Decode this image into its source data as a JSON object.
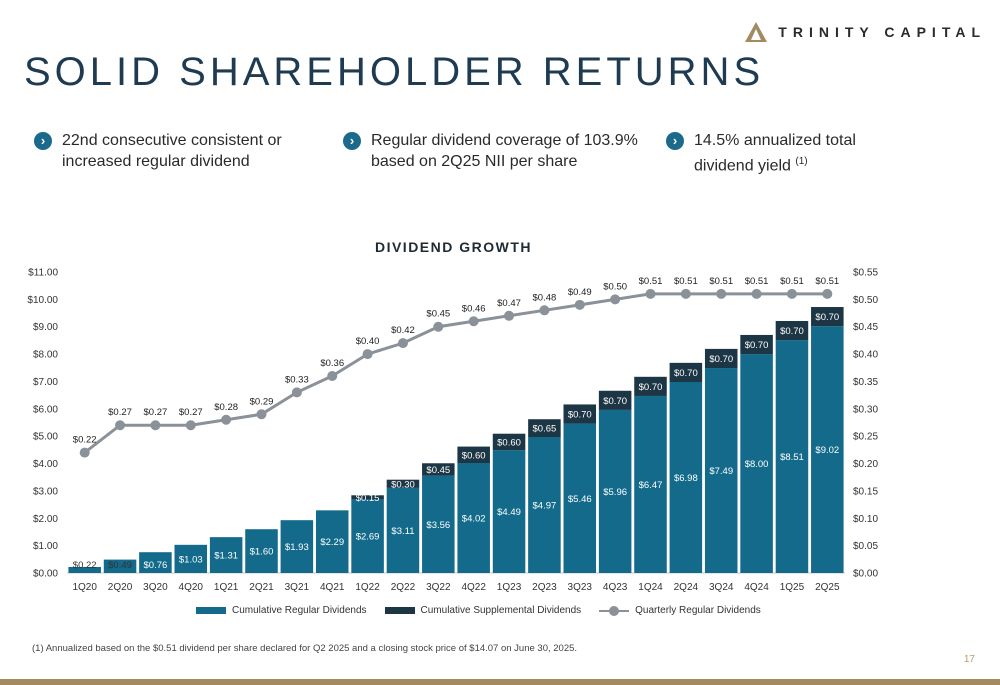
{
  "logo": {
    "text": "TRINITY CAPITAL"
  },
  "page": {
    "title": "SOLID SHAREHOLDER RETURNS",
    "number": "17"
  },
  "highlights": [
    {
      "text": "22nd consecutive consistent or increased regular dividend",
      "note": ""
    },
    {
      "text": "Regular dividend coverage of 103.9% based on 2Q25 NII per share",
      "note": ""
    },
    {
      "text": "14.5% annualized total dividend yield",
      "note": "(1)"
    }
  ],
  "footnote": "(1)   Annualized based on the $0.51 dividend per share declared for Q2 2025 and a closing stock price of $14.07 on June 30, 2025.",
  "colors": {
    "regular": "#136a8a",
    "supplemental": "#1d3645",
    "line": "#8a9198",
    "accent": "#a38a60",
    "title": "#1f3b52"
  },
  "icons": {
    "bullet": "chevron-right-icon",
    "logo": "triangle-logo-icon"
  },
  "chart_data": {
    "type": "bar",
    "title": "DIVIDEND GROWTH",
    "categories": [
      "1Q20",
      "2Q20",
      "3Q20",
      "4Q20",
      "1Q21",
      "2Q21",
      "3Q21",
      "4Q21",
      "1Q22",
      "2Q22",
      "3Q22",
      "4Q22",
      "1Q23",
      "2Q23",
      "3Q23",
      "4Q23",
      "1Q24",
      "2Q24",
      "3Q24",
      "4Q24",
      "1Q25",
      "2Q25"
    ],
    "stacked": true,
    "ylim_left": [
      0,
      11
    ],
    "ylim_right": [
      0,
      0.55
    ],
    "left_ticks": [
      "$0.00",
      "$1.00",
      "$2.00",
      "$3.00",
      "$4.00",
      "$5.00",
      "$6.00",
      "$7.00",
      "$8.00",
      "$9.00",
      "$10.00",
      "$11.00"
    ],
    "right_ticks": [
      "$0.00",
      "$0.05",
      "$0.10",
      "$0.15",
      "$0.20",
      "$0.25",
      "$0.30",
      "$0.35",
      "$0.40",
      "$0.45",
      "$0.50",
      "$0.55"
    ],
    "grid": false,
    "legend_position": "bottom",
    "series": [
      {
        "name": "Cumulative Regular Dividends",
        "type": "bar",
        "axis": "left",
        "values": [
          0.22,
          0.49,
          0.76,
          1.03,
          1.31,
          1.6,
          1.93,
          2.29,
          2.69,
          3.11,
          3.56,
          4.02,
          4.49,
          4.97,
          5.46,
          5.96,
          6.47,
          6.98,
          7.49,
          8.0,
          8.51,
          9.02
        ],
        "labels": [
          "$0.22",
          "$0.49",
          "$0.76",
          "$1.03",
          "$1.31",
          "$1.60",
          "$1.93",
          "$2.29",
          "$2.69",
          "$3.11",
          "$3.56",
          "$4.02",
          "$4.49",
          "$4.97",
          "$5.46",
          "$5.96",
          "$6.47",
          "$6.98",
          "$7.49",
          "$8.00",
          "$8.51",
          "$9.02"
        ]
      },
      {
        "name": "Cumulative Supplemental Dividends",
        "type": "bar",
        "axis": "left",
        "values": [
          0,
          0,
          0,
          0,
          0,
          0,
          0,
          0,
          0.15,
          0.3,
          0.45,
          0.6,
          0.6,
          0.65,
          0.7,
          0.7,
          0.7,
          0.7,
          0.7,
          0.7,
          0.7,
          0.7
        ],
        "labels": [
          "",
          "",
          "",
          "",
          "",
          "",
          "",
          "",
          "$0.15",
          "$0.30",
          "$0.45",
          "$0.60",
          "$0.60",
          "$0.65",
          "$0.70",
          "$0.70",
          "$0.70",
          "$0.70",
          "$0.70",
          "$0.70",
          "$0.70",
          "$0.70"
        ]
      },
      {
        "name": "Quarterly Regular Dividends",
        "type": "line",
        "axis": "right",
        "values": [
          0.22,
          0.27,
          0.27,
          0.27,
          0.28,
          0.29,
          0.33,
          0.36,
          0.4,
          0.42,
          0.45,
          0.46,
          0.47,
          0.48,
          0.49,
          0.5,
          0.51,
          0.51,
          0.51,
          0.51,
          0.51,
          0.51
        ],
        "labels": [
          "$0.22",
          "$0.27",
          "$0.27",
          "$0.27",
          "$0.28",
          "$0.29",
          "$0.33",
          "$0.36",
          "$0.40",
          "$0.42",
          "$0.45",
          "$0.46",
          "$0.47",
          "$0.48",
          "$0.49",
          "$0.50",
          "$0.51",
          "$0.51",
          "$0.51",
          "$0.51",
          "$0.51",
          "$0.51"
        ]
      }
    ]
  }
}
